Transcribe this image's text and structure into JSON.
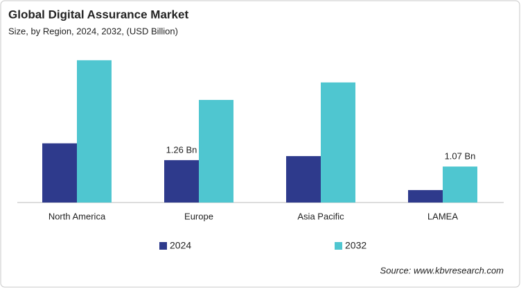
{
  "chart_data": {
    "type": "bar",
    "title": "Global Digital Assurance Market",
    "subtitle": "Size, by Region, 2024, 2032, (USD Billion)",
    "categories": [
      "North America",
      "Europe",
      "Asia Pacific",
      "LAMEA"
    ],
    "series": [
      {
        "name": "2024",
        "color": "#2e3a8c",
        "values": [
          1.76,
          1.26,
          1.38,
          0.37
        ],
        "value_labels": [
          null,
          "1.26 Bn",
          null,
          null
        ]
      },
      {
        "name": "2032",
        "color": "#4fc6d0",
        "values": [
          4.23,
          3.05,
          3.57,
          1.07
        ],
        "value_labels": [
          null,
          null,
          null,
          "1.07 Bn"
        ]
      }
    ],
    "source": "Source: www.kbvresearch.com"
  }
}
